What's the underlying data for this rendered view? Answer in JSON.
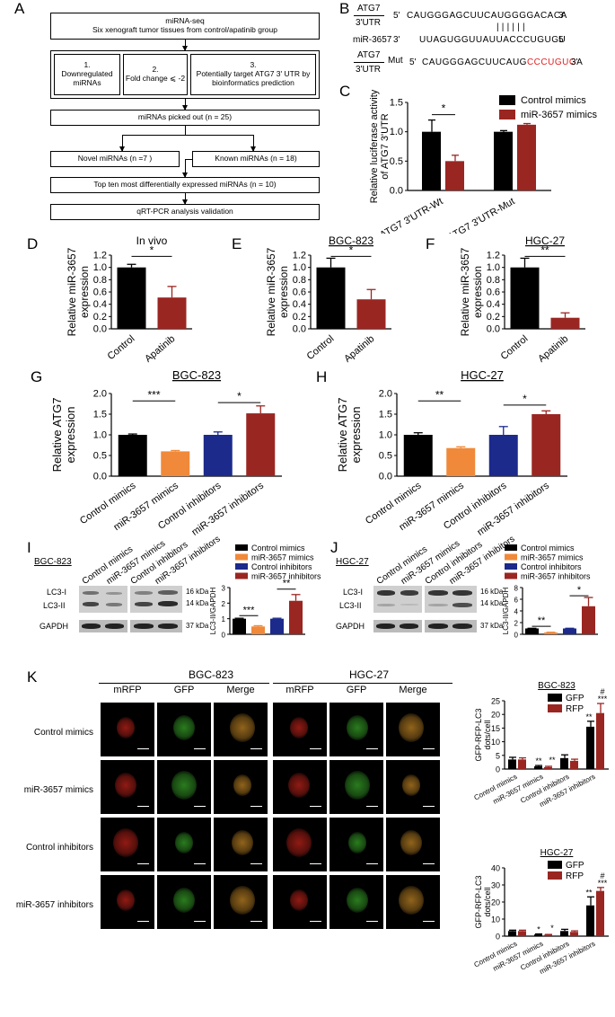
{
  "panels": {
    "A": {
      "letter": "A",
      "top_box": {
        "line1": "miRNA-seq",
        "line2": "Six xenograft tumor tissues from control/apatinib group"
      },
      "criteria": [
        {
          "num": "1.",
          "text": "Downregulated miRNAs"
        },
        {
          "num": "2.",
          "text": "Fold change ⩽ -2"
        },
        {
          "num": "3.",
          "text": "Potentially target ATG7 3' UTR by bioinformatics prediction"
        }
      ],
      "picked": "miRNAs picked out    (n = 25)",
      "novel": "Novel miRNAs (n =7 )",
      "known": "Known miRNAs (n = 18)",
      "top_ten": "Top ten most differentially expressed miRNAs (n = 10)",
      "validation": "qRT-PCR analysis validation"
    },
    "B": {
      "letter": "B",
      "rows": [
        {
          "label_top": "ATG7",
          "label_bottom": "3'UTR",
          "prime5": "5'",
          "seq": "CAUGGGAGCUUCAUGGGGACACA",
          "prime3": "3'"
        },
        {
          "label": "miR-3657",
          "prime5": "3'",
          "seq": "UUAGUGGUUAUUACCCUGUGU",
          "prime3": "5'"
        },
        {
          "label_top": "ATG7",
          "label_bottom": "3'UTR",
          "label_mut": "Mut",
          "prime5": "5'",
          "seq_black": "CAUGGGAGCUUCAUG",
          "seq_red": "CCCUGUG",
          "seq_end": "A",
          "prime3": "3'"
        }
      ],
      "pairing": "||||||"
    },
    "C": {
      "letter": "C"
    },
    "D": {
      "letter": "D"
    },
    "E": {
      "letter": "E"
    },
    "F": {
      "letter": "F"
    },
    "G": {
      "letter": "G"
    },
    "H": {
      "letter": "H"
    },
    "I": {
      "letter": "I",
      "cell": "BGC-823",
      "lanes": [
        "Control mimics",
        "miR-3657 mimics",
        "Control inhibitors",
        "miR-3657 inhibitors"
      ],
      "proteins": [
        "LC3-I",
        "LC3-II",
        "GAPDH"
      ],
      "kda": [
        "16 kDa",
        "14 kDa",
        "37 kDa"
      ]
    },
    "J": {
      "letter": "J",
      "cell": "HGC-27",
      "lanes": [
        "Control mimics",
        "miR-3657 mimics",
        "Control inhibitors",
        "miR-3657 inhibitors"
      ],
      "proteins": [
        "LC3-I",
        "LC3-II",
        "GAPDH"
      ],
      "kda": [
        "16 kDa",
        "14 kDa",
        "37 kDa"
      ]
    },
    "K": {
      "letter": "K",
      "cells": [
        "BGC-823",
        "HGC-27"
      ],
      "channels": [
        "mRFP",
        "GFP",
        "Merge"
      ],
      "rows": [
        "Control mimics",
        "miR-3657 mimics",
        "Control inhibitors",
        "miR-3657 inhibitors"
      ]
    }
  },
  "colors": {
    "control_mimics": "#000000",
    "mir3657_mimics": "#f0893a",
    "control_inhibitors": "#1c2a8c",
    "mir3657_inhibitors": "#9a2622",
    "mir3657_mimics_C": "#9a2622",
    "gfp": "#000000",
    "rfp": "#9a2622",
    "seq_red": "#e02020"
  },
  "chart_data": [
    {
      "id": "C",
      "type": "bar",
      "title": "",
      "ylabel": "Relative luciferase activity of ATG7 3'UTR",
      "ylim": [
        0,
        1.5
      ],
      "yticks": [
        0.0,
        0.5,
        1.0,
        1.5
      ],
      "categories": [
        "ATG7 3'UTR-Wt",
        "ATG7 3'UTR-Mut"
      ],
      "series": [
        {
          "name": "Control mimics",
          "color": "#000000",
          "values": [
            1.0,
            1.0
          ],
          "errors": [
            0.2,
            0.02
          ]
        },
        {
          "name": "miR-3657 mimics",
          "color": "#9a2622",
          "values": [
            0.5,
            1.12
          ],
          "errors": [
            0.1,
            0.02
          ]
        }
      ],
      "annotations": [
        {
          "text": "*",
          "between": [
            0,
            1
          ]
        }
      ]
    },
    {
      "id": "D",
      "type": "bar",
      "title": "In vivo",
      "ylabel": "Relative miR-3657 expression",
      "ylim": [
        0,
        1.2
      ],
      "yticks": [
        0.0,
        0.2,
        0.4,
        0.6,
        0.8,
        1.0,
        1.2
      ],
      "categories": [
        "Control",
        "Apatinib"
      ],
      "values": [
        1.0,
        0.51
      ],
      "errors": [
        0.05,
        0.18
      ],
      "colors": [
        "#000000",
        "#9a2622"
      ],
      "annotations": [
        {
          "text": "*"
        }
      ]
    },
    {
      "id": "E",
      "type": "bar",
      "title": "BGC-823",
      "ylabel": "Relative miR-3657 expression",
      "ylim": [
        0,
        1.2
      ],
      "yticks": [
        0.0,
        0.2,
        0.4,
        0.6,
        0.8,
        1.0,
        1.2
      ],
      "categories": [
        "Control",
        "Apatinib"
      ],
      "values": [
        1.0,
        0.48
      ],
      "errors": [
        0.15,
        0.16
      ],
      "colors": [
        "#000000",
        "#9a2622"
      ],
      "annotations": [
        {
          "text": "*"
        }
      ]
    },
    {
      "id": "F",
      "type": "bar",
      "title": "HGC-27",
      "ylabel": "Relative miR-3657 expression",
      "ylim": [
        0,
        1.2
      ],
      "yticks": [
        0.0,
        0.2,
        0.4,
        0.6,
        0.8,
        1.0,
        1.2
      ],
      "categories": [
        "Control",
        "Apatinib"
      ],
      "values": [
        1.0,
        0.18
      ],
      "errors": [
        0.15,
        0.08
      ],
      "colors": [
        "#000000",
        "#9a2622"
      ],
      "annotations": [
        {
          "text": "**"
        }
      ]
    },
    {
      "id": "G",
      "type": "bar",
      "title": "BGC-823",
      "ylabel": "Relative ATG7 expression",
      "ylim": [
        0,
        2.0
      ],
      "yticks": [
        0.0,
        0.5,
        1.0,
        1.5,
        2.0
      ],
      "categories": [
        "Control mimics",
        "miR-3657 mimics",
        "Control inhibitors",
        "miR-3657 inhibitors"
      ],
      "values": [
        1.0,
        0.6,
        1.0,
        1.52
      ],
      "errors": [
        0.02,
        0.02,
        0.07,
        0.18
      ],
      "colors": [
        "#000000",
        "#f0893a",
        "#1c2a8c",
        "#9a2622"
      ],
      "annotations": [
        {
          "text": "***"
        },
        {
          "text": "*"
        }
      ]
    },
    {
      "id": "H",
      "type": "bar",
      "title": "HGC-27",
      "ylabel": "Relative ATG7 expression",
      "ylim": [
        0,
        2.0
      ],
      "yticks": [
        0.0,
        0.5,
        1.0,
        1.5,
        2.0
      ],
      "categories": [
        "Control mimics",
        "miR-3657 mimics",
        "Control inhibitors",
        "miR-3657 inhibitors"
      ],
      "values": [
        1.0,
        0.68,
        1.0,
        1.5
      ],
      "errors": [
        0.05,
        0.03,
        0.2,
        0.08
      ],
      "colors": [
        "#000000",
        "#f0893a",
        "#1c2a8c",
        "#9a2622"
      ],
      "annotations": [
        {
          "text": "**"
        },
        {
          "text": "*"
        }
      ]
    },
    {
      "id": "I-quant",
      "type": "bar",
      "ylabel": "LC3-II/GAPDH",
      "ylim": [
        0,
        3
      ],
      "yticks": [
        0,
        1,
        2,
        3
      ],
      "categories": [
        "Control mimics",
        "miR-3657 mimics",
        "Control inhibitors",
        "miR-3657 inhibitors"
      ],
      "values": [
        1.0,
        0.5,
        1.0,
        2.15
      ],
      "errors": [
        0.03,
        0.05,
        0.03,
        0.4
      ],
      "colors": [
        "#000000",
        "#f0893a",
        "#1c2a8c",
        "#9a2622"
      ],
      "annotations": [
        {
          "text": "***"
        },
        {
          "text": "**"
        }
      ],
      "legend": [
        "Control mimics",
        "miR-3657 mimics",
        "Control inhibitors",
        "miR-3657 inhibitors"
      ]
    },
    {
      "id": "J-quant",
      "type": "bar",
      "ylabel": "LC3-II/GAPDH",
      "ylim": [
        0,
        8
      ],
      "yticks": [
        0,
        2,
        4,
        6,
        8
      ],
      "categories": [
        "Control mimics",
        "miR-3657 mimics",
        "Control inhibitors",
        "miR-3657 inhibitors"
      ],
      "values": [
        1.0,
        0.3,
        1.0,
        4.8
      ],
      "errors": [
        0.03,
        0.05,
        0.03,
        1.5
      ],
      "colors": [
        "#000000",
        "#f0893a",
        "#1c2a8c",
        "#9a2622"
      ],
      "annotations": [
        {
          "text": "**"
        },
        {
          "text": "*"
        }
      ],
      "legend": [
        "Control mimics",
        "miR-3657 mimics",
        "Control inhibitors",
        "miR-3657 inhibitors"
      ]
    },
    {
      "id": "K-BGC",
      "type": "bar",
      "title": "BGC-823",
      "ylabel": "GFP-RFP-LC3 dots/cell",
      "ylim": [
        0,
        25
      ],
      "yticks": [
        0,
        5,
        10,
        15,
        20,
        25
      ],
      "categories": [
        "Control mimics",
        "miR-3657 mimics",
        "Control inhibitors",
        "miR-3657 inhibitors"
      ],
      "series": [
        {
          "name": "GFP",
          "color": "#000000",
          "values": [
            3.5,
            1.0,
            4.0,
            15.5
          ],
          "errors": [
            0.8,
            0.3,
            1.2,
            2.0
          ]
        },
        {
          "name": "RFP",
          "color": "#9a2622",
          "values": [
            3.5,
            0.7,
            3.0,
            20.5
          ],
          "errors": [
            0.6,
            0.3,
            0.6,
            3.5
          ]
        }
      ],
      "annotations": [
        "**",
        "**",
        "**",
        "***",
        "#"
      ]
    },
    {
      "id": "K-HGC",
      "type": "bar",
      "title": "HGC-27",
      "ylabel": "GFP-RFP-LC3 dots/cell",
      "ylim": [
        0,
        40
      ],
      "yticks": [
        0,
        10,
        20,
        30,
        40
      ],
      "categories": [
        "Control mimics",
        "miR-3657 mimics",
        "Control inhibitors",
        "miR-3657 inhibitors"
      ],
      "series": [
        {
          "name": "GFP",
          "color": "#000000",
          "values": [
            3.0,
            1.0,
            3.0,
            18.0
          ],
          "errors": [
            0.5,
            0.3,
            1.0,
            5.0
          ]
        },
        {
          "name": "RFP",
          "color": "#9a2622",
          "values": [
            3.0,
            0.8,
            2.5,
            26.5
          ],
          "errors": [
            0.5,
            0.2,
            0.6,
            2.0
          ]
        }
      ],
      "annotations": [
        "*",
        "*",
        "**",
        "***",
        "#"
      ]
    }
  ]
}
